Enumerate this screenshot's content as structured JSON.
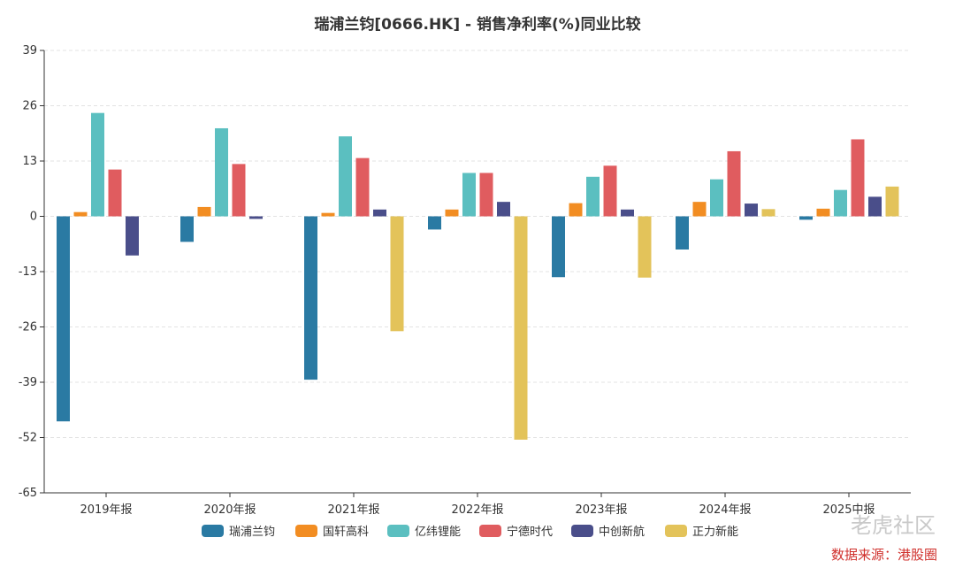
{
  "chart_data": {
    "type": "bar",
    "title": "瑞浦兰钧[0666.HK] - 销售净利率(%)同业比较",
    "categories": [
      "2019年报",
      "2020年报",
      "2021年报",
      "2022年报",
      "2023年报",
      "2024年报",
      "2025中报"
    ],
    "ylim": [
      -65,
      39
    ],
    "yticks": [
      39,
      26,
      13,
      0,
      -13,
      -26,
      -39,
      -52,
      -65
    ],
    "grid": true,
    "legend_position": "bottom",
    "series": [
      {
        "name": "瑞浦兰钧",
        "color": "#2a7aa3",
        "values": [
          -48.2,
          -6.0,
          -38.4,
          -3.1,
          -14.3,
          -7.8,
          -0.8
        ]
      },
      {
        "name": "国轩高科",
        "color": "#f28d22",
        "values": [
          1.0,
          2.2,
          0.8,
          1.6,
          3.1,
          3.4,
          1.8
        ]
      },
      {
        "name": "亿纬锂能",
        "color": "#5bbfc0",
        "values": [
          24.3,
          20.7,
          18.8,
          10.2,
          9.3,
          8.7,
          6.2
        ]
      },
      {
        "name": "宁德时代",
        "color": "#e05c5f",
        "values": [
          11.0,
          12.3,
          13.7,
          10.2,
          11.9,
          15.3,
          18.1
        ]
      },
      {
        "name": "中创新航",
        "color": "#4a4e8a",
        "values": [
          -9.2,
          -0.6,
          1.6,
          3.4,
          1.6,
          3.0,
          4.6
        ]
      },
      {
        "name": "正力新能",
        "color": "#e3c35a",
        "values": [
          null,
          null,
          -27.0,
          -52.5,
          -14.4,
          1.7,
          7.0
        ]
      }
    ]
  },
  "watermark": "老虎社区",
  "source_note": "数据来源：港股圈"
}
